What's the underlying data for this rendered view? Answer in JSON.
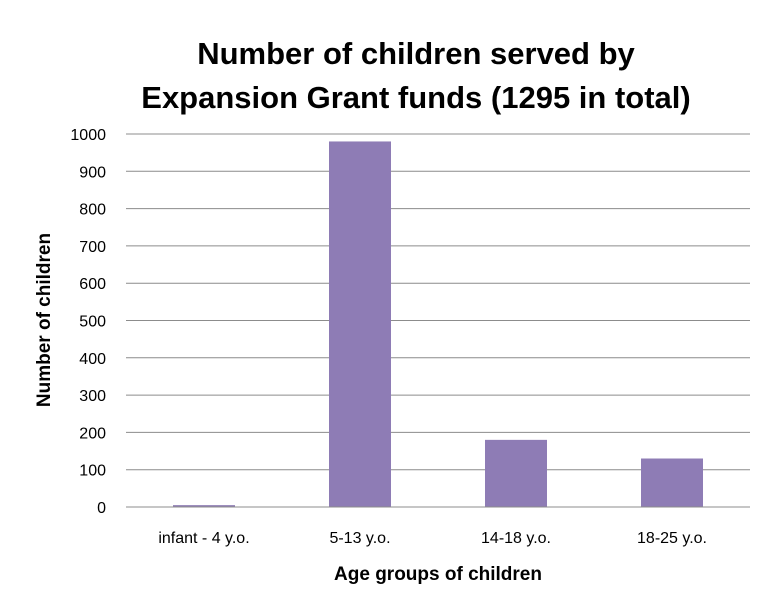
{
  "chart_data": {
    "type": "bar",
    "title_lines": [
      "Number of children served by",
      "Expansion Grant funds (1295 in total)"
    ],
    "xlabel": "Age groups of children",
    "ylabel": "Number of children",
    "categories": [
      "infant - 4 y.o.",
      "5-13 y.o.",
      "14-18 y.o.",
      "18-25 y.o."
    ],
    "values": [
      5,
      980,
      180,
      130
    ],
    "ylim": [
      0,
      1000
    ],
    "yticks": [
      0,
      100,
      200,
      300,
      400,
      500,
      600,
      700,
      800,
      900,
      1000
    ],
    "grid": true,
    "legend": "none",
    "bar_color": "#8e7cb5"
  }
}
